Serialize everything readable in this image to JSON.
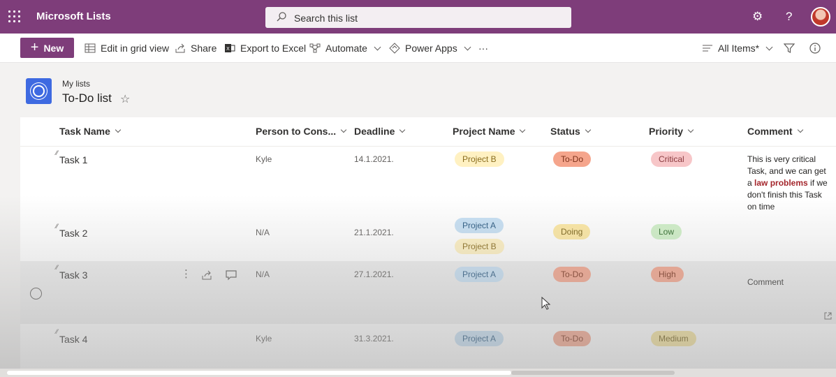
{
  "suite": {
    "app_name": "Microsoft Lists",
    "search_placeholder": "Search this list"
  },
  "toolbar": {
    "new_label": "New",
    "grid_view_label": "Edit in grid view",
    "share_label": "Share",
    "export_label": "Export to Excel",
    "automate_label": "Automate",
    "power_apps_label": "Power Apps",
    "more_label": "···",
    "view_label": "All Items*"
  },
  "list": {
    "breadcrumb": "My lists",
    "title": "To-Do list"
  },
  "columns": [
    "Task Name",
    "Person to Cons...",
    "Deadline",
    "Project Name",
    "Status",
    "Priority",
    "Comment"
  ],
  "rows": [
    {
      "task": "Task 1",
      "person": "Kyle",
      "deadline": "14.1.2021.",
      "projects": [
        "Project B"
      ],
      "status": "To-Do",
      "priority": "Critical",
      "comment_parts": [
        "This is very critical Task, and we can get a ",
        "law problems",
        " if we don't finish this Task on time"
      ]
    },
    {
      "task": "Task 2",
      "person": "N/A",
      "deadline": "21.1.2021.",
      "projects": [
        "Project A",
        "Project B"
      ],
      "status": "Doing",
      "priority": "Low",
      "comment": ""
    },
    {
      "task": "Task 3",
      "person": "N/A",
      "deadline": "27.1.2021.",
      "projects": [
        "Project A"
      ],
      "status": "To-Do",
      "priority": "High",
      "comment": "Comment"
    },
    {
      "task": "Task 4",
      "person": "Kyle",
      "deadline": "31.3.2021.",
      "projects": [
        "Project A"
      ],
      "status": "To-Do",
      "priority": "Medium",
      "comment": ""
    }
  ],
  "colors": {
    "suite_bar": "#7e3d7a",
    "project_a": "#c7e0f4",
    "project_b": "#fff1c2",
    "status_todo": "#f5a58c",
    "status_doing": "#fde8a3",
    "priority_critical": "#f7c6c8",
    "priority_low": "#d0f0c8",
    "priority_high": "#f5a58c",
    "priority_medium": "#f4e29a"
  }
}
